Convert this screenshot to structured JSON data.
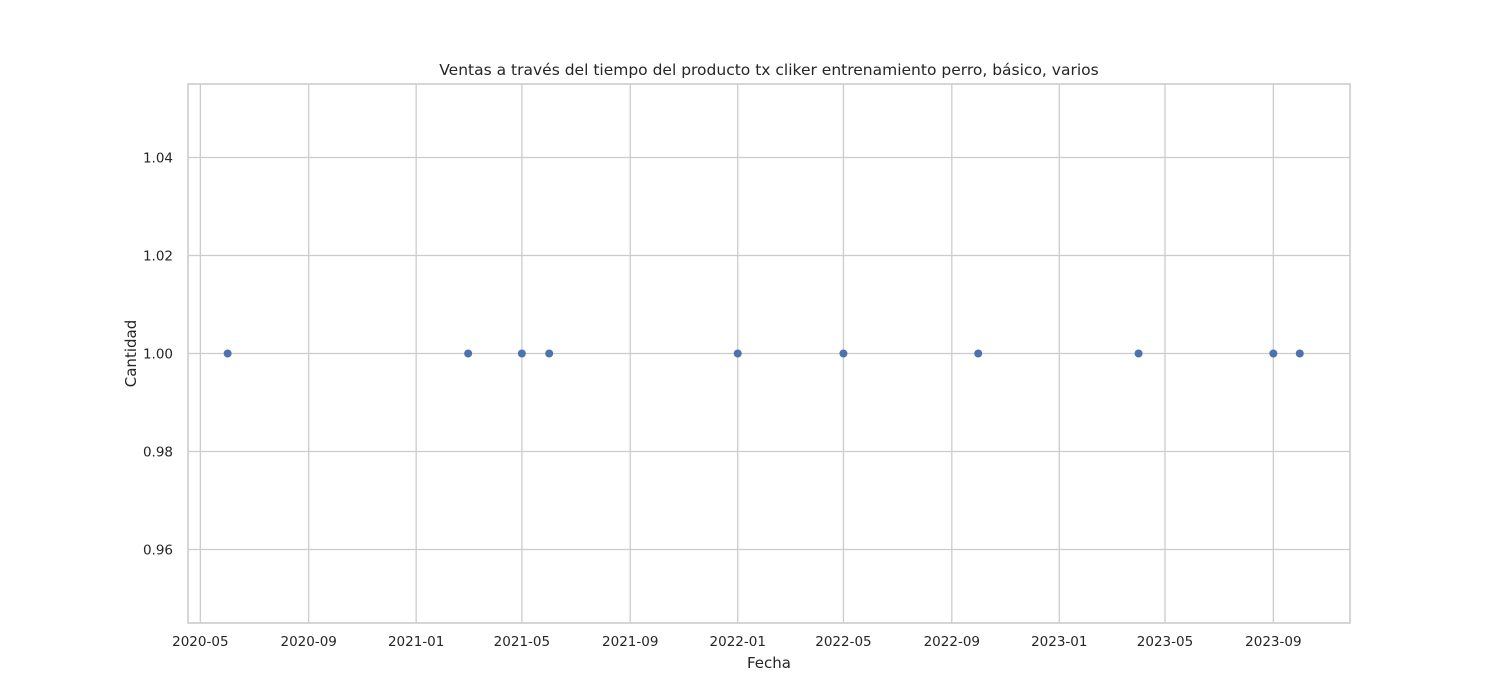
{
  "chart_data": {
    "type": "scatter",
    "title": "Ventas a través del tiempo del producto tx cliker entrenamiento perro, básico, varios",
    "xlabel": "Fecha",
    "ylabel": "Cantidad",
    "x_axis_type": "date",
    "xlim": [
      "2020-04-17",
      "2023-11-27"
    ],
    "ylim": [
      0.945,
      1.055
    ],
    "x_ticks": [
      "2020-05",
      "2020-09",
      "2021-01",
      "2021-05",
      "2021-09",
      "2022-01",
      "2022-05",
      "2022-09",
      "2023-01",
      "2023-05",
      "2023-09"
    ],
    "y_ticks": [
      0.96,
      0.98,
      1.0,
      1.02,
      1.04
    ],
    "y_tick_labels": [
      "0.96",
      "0.98",
      "1.00",
      "1.02",
      "1.04"
    ],
    "grid": true,
    "series": [
      {
        "color": "#4c72b0",
        "points": [
          {
            "x": "2020-06-01",
            "y": 1.0
          },
          {
            "x": "2021-03-01",
            "y": 1.0
          },
          {
            "x": "2021-05-01",
            "y": 1.0
          },
          {
            "x": "2021-06-01",
            "y": 1.0
          },
          {
            "x": "2022-01-01",
            "y": 1.0
          },
          {
            "x": "2022-05-01",
            "y": 1.0
          },
          {
            "x": "2022-10-01",
            "y": 1.0
          },
          {
            "x": "2023-04-01",
            "y": 1.0
          },
          {
            "x": "2023-09-01",
            "y": 1.0
          },
          {
            "x": "2023-10-01",
            "y": 1.0
          }
        ]
      }
    ]
  }
}
